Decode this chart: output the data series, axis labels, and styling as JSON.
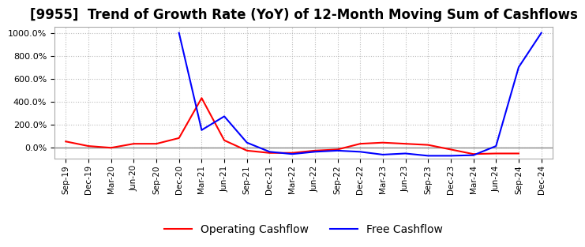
{
  "title": "[9955]  Trend of Growth Rate (YoY) of 12-Month Moving Sum of Cashflows",
  "ylim": [
    -100,
    1050
  ],
  "yticks": [
    0,
    200,
    400,
    600,
    800,
    1000
  ],
  "x_labels": [
    "Sep-19",
    "Dec-19",
    "Mar-20",
    "Jun-20",
    "Sep-20",
    "Dec-20",
    "Mar-21",
    "Jun-21",
    "Sep-21",
    "Dec-21",
    "Mar-22",
    "Jun-22",
    "Sep-22",
    "Dec-22",
    "Mar-23",
    "Jun-23",
    "Sep-23",
    "Dec-23",
    "Mar-24",
    "Jun-24",
    "Sep-24",
    "Dec-24"
  ],
  "operating_cashflow": [
    50,
    10,
    -5,
    30,
    30,
    80,
    430,
    60,
    -30,
    -50,
    -50,
    -30,
    -20,
    30,
    40,
    30,
    20,
    -20,
    -60,
    -55,
    -55,
    null
  ],
  "free_cashflow": [
    null,
    null,
    null,
    null,
    null,
    1000,
    150,
    270,
    40,
    -40,
    -60,
    -40,
    -30,
    -40,
    -65,
    -55,
    -75,
    -75,
    -70,
    10,
    700,
    1000
  ],
  "operating_color": "#ff0000",
  "free_color": "#0000ff",
  "background_color": "#ffffff",
  "grid_color": "#bbbbbb",
  "zero_line_color": "#888888",
  "title_fontsize": 12,
  "legend_fontsize": 10
}
